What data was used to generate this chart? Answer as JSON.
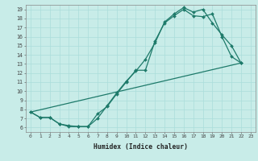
{
  "xlabel": "Humidex (Indice chaleur)",
  "bg_color": "#c8ece8",
  "line_color": "#1e7a6a",
  "grid_color": "#aaddda",
  "xlim": [
    -0.5,
    23.5
  ],
  "ylim": [
    5.5,
    19.5
  ],
  "xticks": [
    0,
    1,
    2,
    3,
    4,
    5,
    6,
    7,
    8,
    9,
    10,
    11,
    12,
    13,
    14,
    15,
    16,
    17,
    18,
    19,
    20,
    21,
    22,
    23
  ],
  "yticks": [
    6,
    7,
    8,
    9,
    10,
    11,
    12,
    13,
    14,
    15,
    16,
    17,
    18,
    19
  ],
  "line1_x": [
    0,
    1,
    2,
    3,
    4,
    5,
    6,
    7,
    8,
    9,
    10,
    11,
    12,
    13,
    14,
    15,
    16,
    17,
    18,
    19,
    20,
    21,
    22
  ],
  "line1_y": [
    7.7,
    7.1,
    7.1,
    6.4,
    6.2,
    6.1,
    6.1,
    7.5,
    8.3,
    9.7,
    11.0,
    12.3,
    12.3,
    15.5,
    17.5,
    18.3,
    19.0,
    18.3,
    18.2,
    18.5,
    16.0,
    13.8,
    13.1
  ],
  "line2_x": [
    0,
    1,
    2,
    3,
    4,
    5,
    6,
    7,
    8,
    9,
    10,
    11,
    12,
    13,
    14,
    15,
    16,
    17,
    18,
    19,
    20,
    21,
    22
  ],
  "line2_y": [
    7.7,
    7.1,
    7.1,
    6.4,
    6.1,
    6.1,
    6.1,
    7.0,
    8.4,
    9.8,
    11.1,
    12.2,
    13.5,
    15.3,
    17.6,
    18.5,
    19.2,
    18.7,
    19.0,
    17.5,
    16.2,
    15.0,
    13.1
  ],
  "line3_x": [
    0,
    22
  ],
  "line3_y": [
    7.7,
    13.1
  ]
}
